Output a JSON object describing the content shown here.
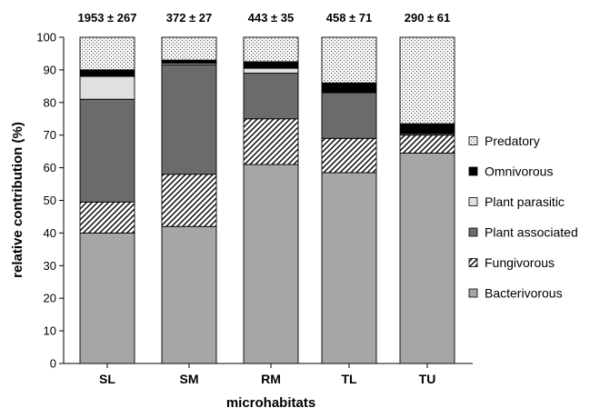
{
  "chart_data": {
    "type": "bar",
    "stacked": true,
    "percent": true,
    "xlabel": "microhabitats",
    "ylabel": "relative contribution (%)",
    "ylim": [
      0,
      100
    ],
    "ytick_step": 10,
    "categories": [
      "SL",
      "SM",
      "RM",
      "TL",
      "TU"
    ],
    "totals": [
      "1953 ± 267",
      "372 ± 27",
      "443 ± 35",
      "458 ± 71",
      "290 ± 61"
    ],
    "series": [
      {
        "name": "Bacterivorous",
        "pattern": "solid-light-gray",
        "color": "#a6a6a6",
        "values": [
          40,
          42,
          61,
          58.5,
          64.5
        ]
      },
      {
        "name": "Fungivorous",
        "pattern": "diagonal-hatch",
        "color": "#ffffff",
        "values": [
          9.5,
          16,
          14,
          10.5,
          5.5
        ]
      },
      {
        "name": "Plant associated",
        "pattern": "solid-dark-gray",
        "color": "#6b6b6b",
        "values": [
          31.5,
          33.5,
          14,
          14,
          0.5
        ]
      },
      {
        "name": "Plant parasitic",
        "pattern": "solid-very-light",
        "color": "#e0e0e0",
        "values": [
          7,
          0.5,
          1.5,
          0,
          0
        ]
      },
      {
        "name": "Omnivorous",
        "pattern": "solid-black",
        "color": "#000000",
        "values": [
          2,
          1,
          2,
          3,
          3
        ]
      },
      {
        "name": "Predatory",
        "pattern": "dotted",
        "color": "#f2f2f2",
        "values": [
          10,
          7,
          7.5,
          14,
          26.5
        ]
      }
    ],
    "legend_order": [
      "Predatory",
      "Omnivorous",
      "Plant parasitic",
      "Plant associated",
      "Fungivorous",
      "Bacterivorous"
    ],
    "legend_position": "right",
    "grid": false
  }
}
